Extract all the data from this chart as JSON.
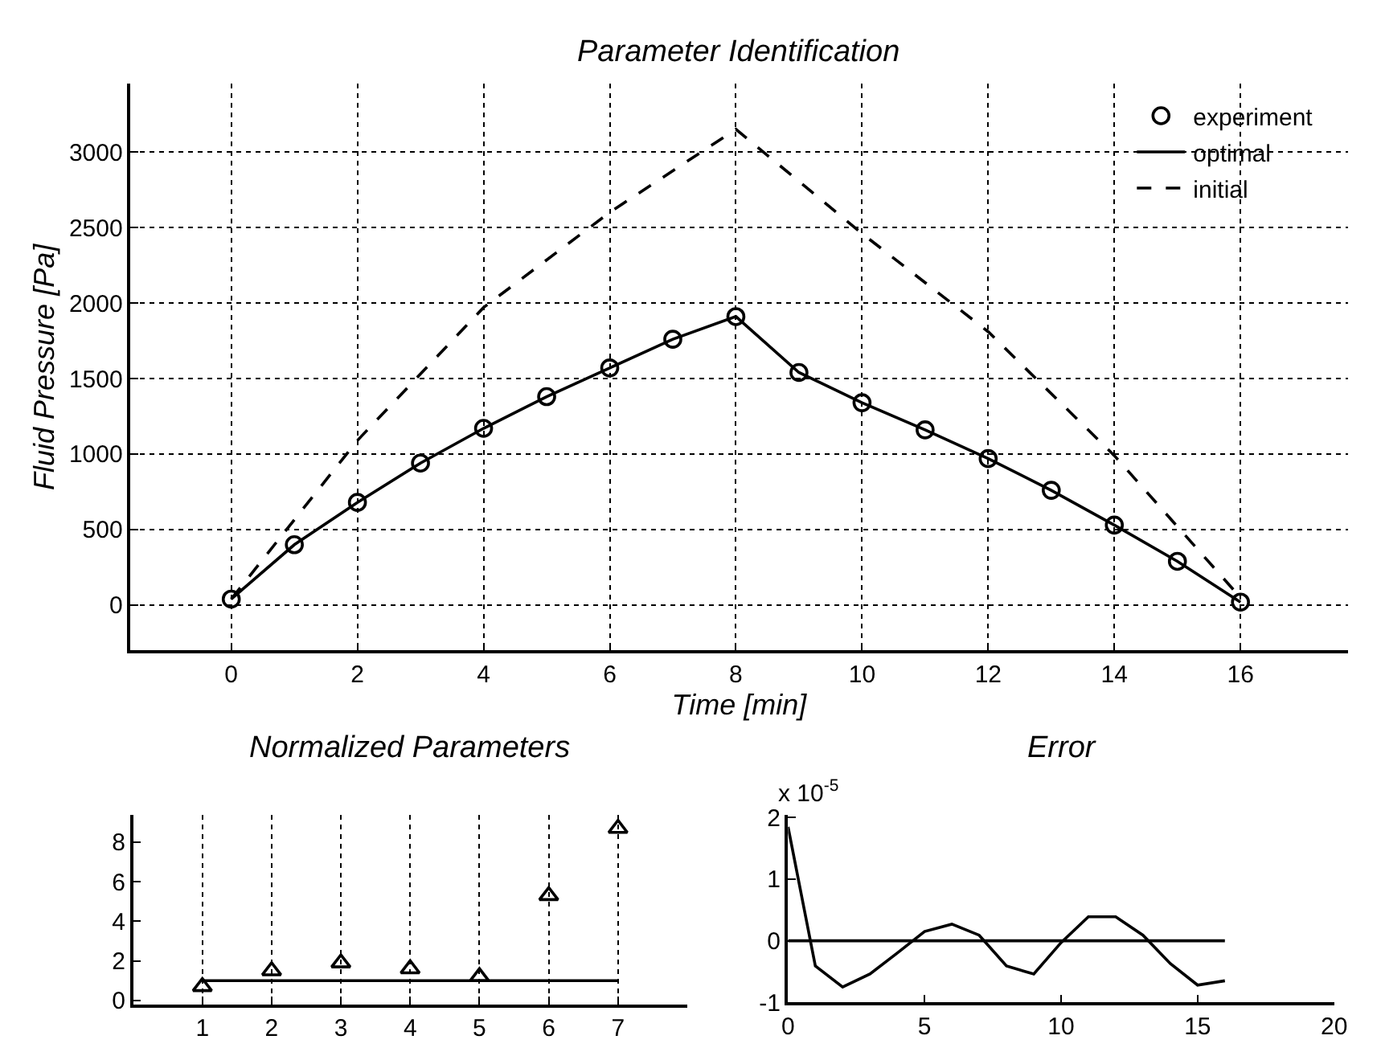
{
  "chart_data": [
    {
      "type": "line",
      "title": "Parameter Identification",
      "xlabel": "Time [min]",
      "ylabel": "Fluid Pressure [Pa]",
      "x": [
        0,
        1,
        2,
        3,
        4,
        5,
        6,
        7,
        8,
        9,
        10,
        11,
        12,
        13,
        14,
        15,
        16
      ],
      "xlim": [
        -1.6,
        17.7
      ],
      "ylim": [
        -300,
        3450
      ],
      "xticks": [
        0,
        2,
        4,
        6,
        8,
        10,
        12,
        14,
        16
      ],
      "yticks": [
        0,
        500,
        1000,
        1500,
        2000,
        2500,
        3000
      ],
      "grid": true,
      "legend": "top right",
      "series": [
        {
          "name": "experiment",
          "type": "scatter",
          "marker": "circle",
          "color": "#000000",
          "values": [
            40,
            400,
            680,
            940,
            1170,
            1380,
            1570,
            1760,
            1910,
            1540,
            1340,
            1160,
            970,
            760,
            530,
            290,
            20
          ]
        },
        {
          "name": "optimal",
          "marker": "none",
          "line_style": "solid",
          "color": "#000000",
          "values": [
            40,
            400,
            680,
            940,
            1170,
            1380,
            1570,
            1760,
            1910,
            1540,
            1340,
            1160,
            970,
            760,
            530,
            290,
            20
          ]
        },
        {
          "name": "initial",
          "marker": "none",
          "line_style": "dashed",
          "color": "#000000",
          "x": [
            0,
            2,
            4,
            6,
            8,
            10,
            12,
            14,
            16
          ],
          "values": [
            40,
            1090,
            1970,
            2600,
            3150,
            2460,
            1810,
            990,
            50
          ]
        }
      ]
    },
    {
      "type": "scatter",
      "title": "Normalized Parameters",
      "x": [
        1,
        2,
        3,
        4,
        5,
        6,
        7
      ],
      "xlim": [
        0,
        8
      ],
      "ylim": [
        -0.2,
        9.4
      ],
      "xticks": [
        1,
        2,
        3,
        4,
        5,
        6,
        7
      ],
      "yticks": [
        0,
        2,
        4,
        6,
        8
      ],
      "grid": "x",
      "series": [
        {
          "marker": "triangle",
          "color": "#000000",
          "values": [
            0.7,
            1.5,
            1.9,
            1.6,
            1.2,
            5.3,
            8.7
          ]
        },
        {
          "type": "line",
          "marker": "none",
          "line_style": "solid",
          "color": "#000000",
          "x": [
            1,
            7
          ],
          "values": [
            1,
            1
          ]
        }
      ]
    },
    {
      "type": "line",
      "title": "Error",
      "annotations": [
        "x 10$^{-5}$"
      ],
      "x": [
        0,
        1,
        2,
        3,
        4,
        5,
        6,
        7,
        8,
        9,
        10,
        11,
        12,
        13,
        14,
        15,
        16
      ],
      "xlim": [
        0,
        20
      ],
      "ylim": [
        -1,
        2.05
      ],
      "xticks": [
        0,
        5,
        10,
        15,
        20
      ],
      "yticks": [
        -1,
        0,
        1,
        2
      ],
      "grid": false,
      "series": [
        {
          "marker": "none",
          "line_style": "solid",
          "color": "#000000",
          "values": [
            1.85,
            -0.41,
            -0.75,
            -0.54,
            -0.2,
            0.15,
            0.27,
            0.09,
            -0.41,
            -0.54,
            -0.03,
            0.39,
            0.39,
            0.09,
            -0.37,
            -0.72,
            -0.65
          ]
        },
        {
          "marker": "none",
          "line_style": "solid",
          "color": "#000000",
          "x": [
            0,
            16
          ],
          "values": [
            0,
            0
          ]
        }
      ]
    }
  ]
}
